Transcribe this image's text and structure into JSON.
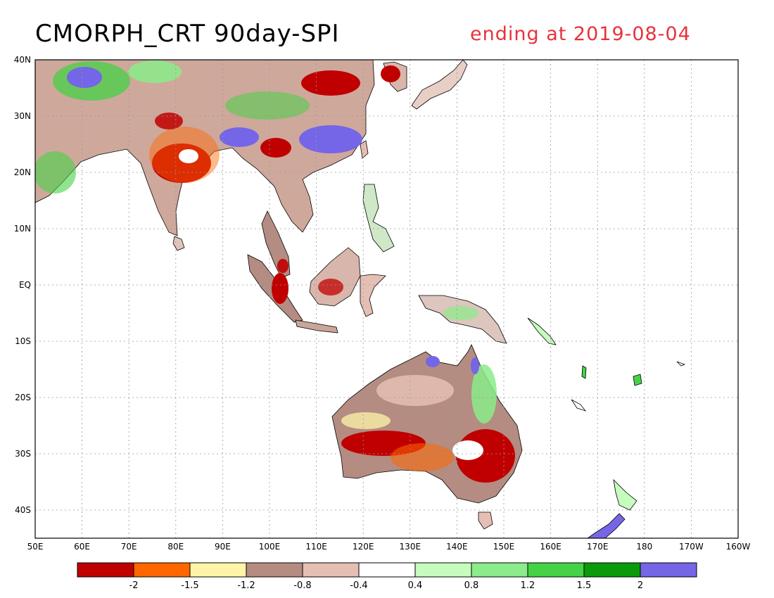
{
  "title": {
    "left": "CMORPH_CRT 90day-SPI",
    "right": "ending at 2019-08-04"
  },
  "map": {
    "lon_range": [
      50,
      200
    ],
    "lat_range": [
      -45,
      40
    ],
    "lon_ticks": [
      {
        "v": 50,
        "label": "50E"
      },
      {
        "v": 60,
        "label": "60E"
      },
      {
        "v": 70,
        "label": "70E"
      },
      {
        "v": 80,
        "label": "80E"
      },
      {
        "v": 90,
        "label": "90E"
      },
      {
        "v": 100,
        "label": "100E"
      },
      {
        "v": 110,
        "label": "110E"
      },
      {
        "v": 120,
        "label": "120E"
      },
      {
        "v": 130,
        "label": "130E"
      },
      {
        "v": 140,
        "label": "140E"
      },
      {
        "v": 150,
        "label": "150E"
      },
      {
        "v": 160,
        "label": "160E"
      },
      {
        "v": 170,
        "label": "170E"
      },
      {
        "v": 180,
        "label": "180"
      },
      {
        "v": 190,
        "label": "170W"
      },
      {
        "v": 200,
        "label": "160W"
      }
    ],
    "lat_ticks": [
      {
        "v": 40,
        "label": "40N"
      },
      {
        "v": 30,
        "label": "30N"
      },
      {
        "v": 20,
        "label": "20N"
      },
      {
        "v": 10,
        "label": "10N"
      },
      {
        "v": 0,
        "label": "EQ"
      },
      {
        "v": -10,
        "label": "10S"
      },
      {
        "v": -20,
        "label": "20S"
      },
      {
        "v": -30,
        "label": "30S"
      },
      {
        "v": -40,
        "label": "40S"
      }
    ],
    "grid": true
  },
  "legend": {
    "colors": [
      "#c00000",
      "#ff6600",
      "#fff5a8",
      "#b48c82",
      "#e6bfb4",
      "#ffffff",
      "#c6fcbe",
      "#8aec8a",
      "#46d246",
      "#0a9a0a",
      "#7466e6"
    ],
    "labels": [
      "-2",
      "-1.5",
      "-1.2",
      "-0.8",
      "-0.4",
      "0.4",
      "0.8",
      "1.2",
      "1.5",
      "2"
    ]
  }
}
